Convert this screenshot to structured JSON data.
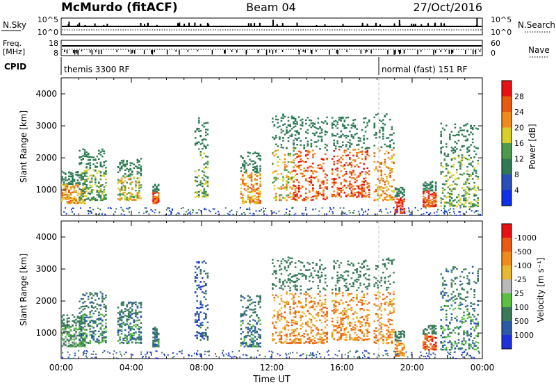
{
  "header": {
    "title": "McMurdo (fitACF)",
    "beam": "Beam 04",
    "date": "27/Oct/2016"
  },
  "status_panel": {
    "nsky_label": "N.Sky",
    "nsky_ticks": [
      "10^5",
      "10^0"
    ],
    "nsearch_label": "N.Search",
    "nsearch_ticks": [
      "10^5",
      "10^0"
    ],
    "freq_label_line1": "Freq.",
    "freq_label_line2": "[MHz]",
    "freq_ticks": [
      "18",
      "8"
    ],
    "nave_label": "Nave",
    "nave_ticks": [
      "60",
      "0"
    ],
    "cpid_label": "CPID",
    "cpid_segments": [
      {
        "name": "themis 3300 RF",
        "start_hour": 0
      },
      {
        "name": "normal (fast) 151 RF",
        "start_hour": 18.1
      }
    ]
  },
  "chart_data": [
    {
      "type": "heatmap",
      "panel": "power",
      "xlabel": "",
      "ylabel": "Slant Range [km]",
      "xlim": [
        0,
        24
      ],
      "ylim": [
        200,
        4500
      ],
      "y_ticks": [
        1000,
        2000,
        3000,
        4000
      ],
      "colorbar": {
        "label": "Power [dB]",
        "ticks": [
          "4",
          "8",
          "12",
          "16",
          "20",
          "24",
          "28"
        ],
        "colors": [
          "#1030e8",
          "#2a4fb8",
          "#2f7a55",
          "#4d9a4d",
          "#d8cf2a",
          "#f08a1c",
          "#e85a10",
          "#e81010"
        ]
      },
      "echo_regions": [
        {
          "t0": 0.0,
          "t1": 1.4,
          "r0": 600,
          "r1": 1600,
          "level": 5
        },
        {
          "t0": 1.0,
          "t1": 2.6,
          "r0": 700,
          "r1": 2300,
          "level": 3
        },
        {
          "t0": 3.2,
          "t1": 4.6,
          "r0": 700,
          "r1": 2000,
          "level": 4
        },
        {
          "t0": 5.2,
          "t1": 5.6,
          "r0": 600,
          "r1": 1200,
          "level": 6
        },
        {
          "t0": 7.6,
          "t1": 8.4,
          "r0": 800,
          "r1": 3300,
          "level": 3
        },
        {
          "t0": 10.2,
          "t1": 11.4,
          "r0": 600,
          "r1": 2200,
          "level": 5
        },
        {
          "t0": 12.0,
          "t1": 13.4,
          "r0": 700,
          "r1": 3400,
          "level": 4
        },
        {
          "t0": 13.2,
          "t1": 15.2,
          "r0": 700,
          "r1": 3300,
          "level": 6
        },
        {
          "t0": 15.4,
          "t1": 17.6,
          "r0": 800,
          "r1": 3300,
          "level": 6
        },
        {
          "t0": 17.8,
          "t1": 19.0,
          "r0": 700,
          "r1": 3400,
          "level": 5
        },
        {
          "t0": 19.0,
          "t1": 19.6,
          "r0": 300,
          "r1": 1100,
          "level": 7
        },
        {
          "t0": 20.6,
          "t1": 21.4,
          "r0": 500,
          "r1": 1300,
          "level": 6
        },
        {
          "t0": 21.6,
          "t1": 23.8,
          "r0": 500,
          "r1": 3100,
          "level": 3
        }
      ]
    },
    {
      "type": "heatmap",
      "panel": "velocity",
      "xlabel": "Time UT",
      "ylabel": "Slant Range [km]",
      "xlim": [
        0,
        24
      ],
      "ylim": [
        200,
        4500
      ],
      "x_ticks": [
        "00:00",
        "04:00",
        "08:00",
        "12:00",
        "16:00",
        "20:00",
        "00:00"
      ],
      "y_ticks": [
        1000,
        2000,
        3000,
        4000
      ],
      "colorbar": {
        "label": "Velocity [m s⁻¹]",
        "ticks": [
          "1000",
          "500",
          "100",
          "25",
          "-25",
          "-100",
          "-500",
          "-1000"
        ],
        "colors": [
          "#2030d8",
          "#2a5aa8",
          "#3a7a5a",
          "#5cc040",
          "#b8b8b8",
          "#e8b830",
          "#f08a1c",
          "#ea5a12",
          "#e81010"
        ]
      },
      "echo_regions": [
        {
          "t0": 0.0,
          "t1": 1.4,
          "r0": 600,
          "r1": 1600,
          "level": 3
        },
        {
          "t0": 1.0,
          "t1": 2.6,
          "r0": 700,
          "r1": 2300,
          "level": 2
        },
        {
          "t0": 3.2,
          "t1": 4.6,
          "r0": 700,
          "r1": 2000,
          "level": 2
        },
        {
          "t0": 5.2,
          "t1": 5.6,
          "r0": 600,
          "r1": 1200,
          "level": 2
        },
        {
          "t0": 7.6,
          "t1": 8.4,
          "r0": 800,
          "r1": 3300,
          "level": 1
        },
        {
          "t0": 10.2,
          "t1": 11.4,
          "r0": 600,
          "r1": 2200,
          "level": 2
        },
        {
          "t0": 12.0,
          "t1": 13.4,
          "r0": 700,
          "r1": 3400,
          "level": 6
        },
        {
          "t0": 13.2,
          "t1": 15.2,
          "r0": 700,
          "r1": 3300,
          "level": 6
        },
        {
          "t0": 15.4,
          "t1": 17.6,
          "r0": 800,
          "r1": 3300,
          "level": 6
        },
        {
          "t0": 17.8,
          "t1": 19.0,
          "r0": 700,
          "r1": 3400,
          "level": 6
        },
        {
          "t0": 19.0,
          "t1": 19.6,
          "r0": 300,
          "r1": 1100,
          "level": 6
        },
        {
          "t0": 20.6,
          "t1": 21.4,
          "r0": 500,
          "r1": 1300,
          "level": 7
        },
        {
          "t0": 21.6,
          "t1": 23.8,
          "r0": 500,
          "r1": 3100,
          "level": 2
        }
      ]
    }
  ]
}
